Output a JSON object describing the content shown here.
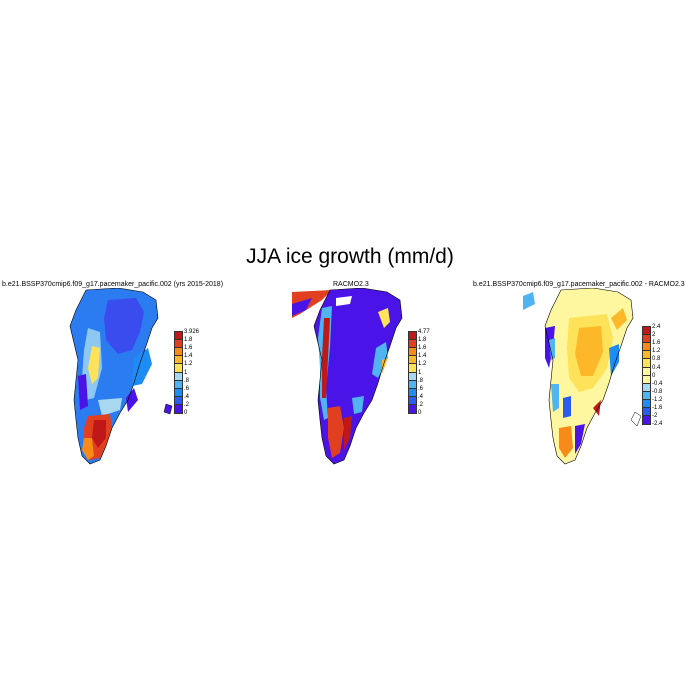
{
  "title": "JJA ice growth (mm/d)",
  "colors": {
    "scale1": [
      "#4a14e8",
      "#2a5cf0",
      "#1e8cf5",
      "#4fb4f0",
      "#a8d8f0",
      "#fef7a0",
      "#fde25a",
      "#fdb82a",
      "#f88a1a",
      "#e04020",
      "#c01818"
    ],
    "diff": [
      "#4a14e8",
      "#2a5cf0",
      "#1e8cf5",
      "#4fb4f0",
      "#a8d8f0",
      "#fef7a0",
      "#fde25a",
      "#fdb82a",
      "#f88a1a",
      "#e04020",
      "#c01818"
    ]
  },
  "panels": [
    {
      "id": "model",
      "title": "b.e21.BSSP370cmip6.f09_g17.pacemaker_pacific.002 (yrs 2015-2018)",
      "colorbar_labels": [
        "3.926",
        "1.8",
        "1.6",
        "1.4",
        "1.2",
        "1",
        ".8",
        ".6",
        ".4",
        ".2",
        "0"
      ]
    },
    {
      "id": "racmo",
      "title": "RACMO2.3",
      "colorbar_labels": [
        "4.77",
        "1.8",
        "1.6",
        "1.4",
        "1.2",
        "1",
        ".8",
        ".6",
        ".4",
        ".2",
        "0"
      ]
    },
    {
      "id": "difference",
      "title": "b.e21.BSSP370cmip6.f09_g17.pacemaker_pacific.002 - RACMO2.3",
      "colorbar_labels": [
        "2.4",
        "2",
        "1.6",
        "1.2",
        "0.8",
        "0.4",
        "0",
        "-0.4",
        "-0.8",
        "-1.2",
        "-1.6",
        "-2",
        "-2.4"
      ]
    }
  ]
}
